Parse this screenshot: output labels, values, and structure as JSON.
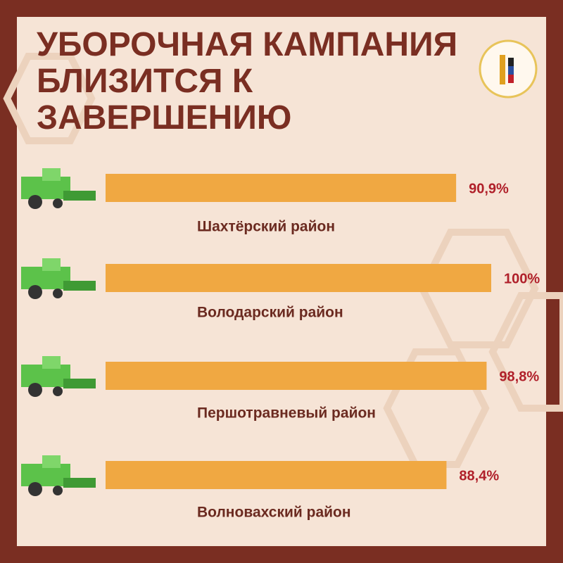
{
  "chart_data": {
    "type": "bar",
    "orientation": "horizontal",
    "title": "УБОРОЧНАЯ КАМПАНИЯ БЛИЗИТСЯ К ЗАВЕРШЕНИЮ",
    "categories": [
      "Шахтёрский район",
      "Володарский район",
      "Першотравневый район",
      "Волновахский район"
    ],
    "values": [
      90.9,
      100,
      98.8,
      88.4
    ],
    "value_labels": [
      "90,9%",
      "100%",
      "98,8%",
      "88,4%"
    ],
    "color": "#f0a842",
    "xlim": [
      0,
      100
    ]
  }
}
